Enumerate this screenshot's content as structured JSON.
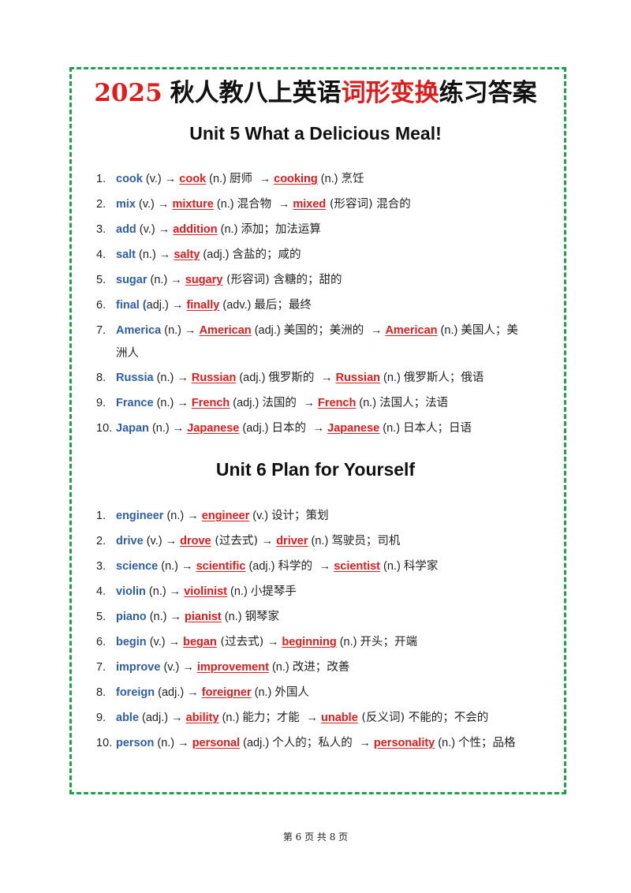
{
  "title": {
    "year": "2025",
    "part1": "秋人教八上英语",
    "highlight": "词形变换",
    "part2": "练习答案"
  },
  "units": [
    {
      "heading": "Unit 5 What a Delicious Meal!",
      "items": [
        {
          "num": "1.",
          "segments": [
            {
              "t": "kw",
              "v": "cook"
            },
            {
              "t": "txt",
              "v": " (v.) → "
            },
            {
              "t": "ans",
              "v": "cook"
            },
            {
              "t": "txt",
              "v": " (n.) "
            },
            {
              "t": "zh",
              "v": "厨师 "
            },
            {
              "t": "txt",
              "v": " → "
            },
            {
              "t": "ans",
              "v": "cooking"
            },
            {
              "t": "txt",
              "v": " (n.) "
            },
            {
              "t": "zh",
              "v": "烹饪"
            }
          ]
        },
        {
          "num": "2.",
          "segments": [
            {
              "t": "kw",
              "v": "mix"
            },
            {
              "t": "txt",
              "v": " (v.) → "
            },
            {
              "t": "ans",
              "v": "mixture"
            },
            {
              "t": "txt",
              "v": " (n.) "
            },
            {
              "t": "zh",
              "v": "混合物 "
            },
            {
              "t": "txt",
              "v": " → "
            },
            {
              "t": "ans",
              "v": "mixed"
            },
            {
              "t": "zh",
              "v": " (形容词) 混合的"
            }
          ]
        },
        {
          "num": "3.",
          "segments": [
            {
              "t": "kw",
              "v": "add"
            },
            {
              "t": "txt",
              "v": " (v.) → "
            },
            {
              "t": "ans",
              "v": "addition"
            },
            {
              "t": "txt",
              "v": " (n.) "
            },
            {
              "t": "zh",
              "v": "添加；加法运算"
            }
          ]
        },
        {
          "num": "4.",
          "segments": [
            {
              "t": "kw",
              "v": "salt"
            },
            {
              "t": "txt",
              "v": " (n.) → "
            },
            {
              "t": "ans",
              "v": "salty"
            },
            {
              "t": "txt",
              "v": " (adj.) "
            },
            {
              "t": "zh",
              "v": "含盐的；咸的"
            }
          ]
        },
        {
          "num": "5.",
          "segments": [
            {
              "t": "kw",
              "v": "sugar"
            },
            {
              "t": "txt",
              "v": " (n.) → "
            },
            {
              "t": "ans",
              "v": "sugary"
            },
            {
              "t": "zh",
              "v": " (形容词) 含糖的；甜的"
            }
          ]
        },
        {
          "num": "6.",
          "segments": [
            {
              "t": "kw",
              "v": "final ("
            },
            {
              "t": "txt",
              "v": "adj.) → "
            },
            {
              "t": "ans",
              "v": "finally"
            },
            {
              "t": "txt",
              "v": " (adv.) "
            },
            {
              "t": "zh",
              "v": "最后；最终"
            }
          ]
        },
        {
          "num": "7.",
          "segments": [
            {
              "t": "kw",
              "v": "America"
            },
            {
              "t": "txt",
              "v": " (n.) → "
            },
            {
              "t": "ans",
              "v": "American"
            },
            {
              "t": "txt",
              "v": " (adj.) "
            },
            {
              "t": "zh",
              "v": "美国的；美洲的 "
            },
            {
              "t": "txt",
              "v": " → "
            },
            {
              "t": "ans",
              "v": "American"
            },
            {
              "t": "txt",
              "v": " (n.) "
            },
            {
              "t": "zh",
              "v": "美国人；美"
            }
          ],
          "wrap": "洲人"
        },
        {
          "num": "8.",
          "segments": [
            {
              "t": "kw",
              "v": "Russia"
            },
            {
              "t": "txt",
              "v": " (n.) → "
            },
            {
              "t": "ans",
              "v": "Russian"
            },
            {
              "t": "txt",
              "v": " (adj.) "
            },
            {
              "t": "zh",
              "v": "俄罗斯的 "
            },
            {
              "t": "txt",
              "v": " → "
            },
            {
              "t": "ans",
              "v": "Russian"
            },
            {
              "t": "txt",
              "v": " (n.) "
            },
            {
              "t": "zh",
              "v": "俄罗斯人；俄语"
            }
          ]
        },
        {
          "num": "9.",
          "segments": [
            {
              "t": "kw",
              "v": "France"
            },
            {
              "t": "txt",
              "v": " (n.) → "
            },
            {
              "t": "ans",
              "v": "French"
            },
            {
              "t": "txt",
              "v": " (adj.) "
            },
            {
              "t": "zh",
              "v": "法国的 "
            },
            {
              "t": "txt",
              "v": " → "
            },
            {
              "t": "ans",
              "v": "French"
            },
            {
              "t": "txt",
              "v": " (n.) "
            },
            {
              "t": "zh",
              "v": "法国人；法语"
            }
          ]
        },
        {
          "num": "10.",
          "segments": [
            {
              "t": "kw",
              "v": "Japan"
            },
            {
              "t": "txt",
              "v": " (n.) → "
            },
            {
              "t": "ans",
              "v": "Japanese"
            },
            {
              "t": "txt",
              "v": " (adj.) "
            },
            {
              "t": "zh",
              "v": "日本的 "
            },
            {
              "t": "txt",
              "v": " → "
            },
            {
              "t": "ans",
              "v": "Japanese"
            },
            {
              "t": "txt",
              "v": " (n.) "
            },
            {
              "t": "zh",
              "v": "日本人；日语"
            }
          ]
        }
      ]
    },
    {
      "heading": "Unit 6 Plan for Yourself",
      "items": [
        {
          "num": "1.",
          "segments": [
            {
              "t": "kw",
              "v": "engineer"
            },
            {
              "t": "txt",
              "v": " (n.) → "
            },
            {
              "t": "ans",
              "v": "engineer"
            },
            {
              "t": "txt",
              "v": " (v.) "
            },
            {
              "t": "zh",
              "v": "设计；策划"
            }
          ]
        },
        {
          "num": "2.",
          "segments": [
            {
              "t": "kw",
              "v": "drive"
            },
            {
              "t": "txt",
              "v": " (v.) → "
            },
            {
              "t": "ans",
              "v": "drove"
            },
            {
              "t": "zh",
              "v": " (过去式) "
            },
            {
              "t": "txt",
              "v": "→ "
            },
            {
              "t": "ans",
              "v": "driver"
            },
            {
              "t": "txt",
              "v": " (n.) "
            },
            {
              "t": "zh",
              "v": "驾驶员；司机"
            }
          ]
        },
        {
          "num": "3.",
          "segments": [
            {
              "t": "kw",
              "v": "science"
            },
            {
              "t": "txt",
              "v": " (n.) → "
            },
            {
              "t": "ans",
              "v": "scientific"
            },
            {
              "t": "txt",
              "v": " (adj.) "
            },
            {
              "t": "zh",
              "v": "科学的 "
            },
            {
              "t": "txt",
              "v": " → "
            },
            {
              "t": "ans",
              "v": "scientist"
            },
            {
              "t": "txt",
              "v": " (n.) "
            },
            {
              "t": "zh",
              "v": "科学家"
            }
          ]
        },
        {
          "num": "4.",
          "segments": [
            {
              "t": "kw",
              "v": "violin"
            },
            {
              "t": "txt",
              "v": " (n.) → "
            },
            {
              "t": "ans",
              "v": "violinist"
            },
            {
              "t": "txt",
              "v": " (n.) "
            },
            {
              "t": "zh",
              "v": "小提琴手"
            }
          ]
        },
        {
          "num": "5.",
          "segments": [
            {
              "t": "kw",
              "v": "piano"
            },
            {
              "t": "txt",
              "v": " (n.) → "
            },
            {
              "t": "ans",
              "v": "pianist"
            },
            {
              "t": "txt",
              "v": " (n.) "
            },
            {
              "t": "zh",
              "v": "钢琴家"
            }
          ]
        },
        {
          "num": "6.",
          "segments": [
            {
              "t": "kw",
              "v": "begin"
            },
            {
              "t": "txt",
              "v": " (v.) → "
            },
            {
              "t": "ans",
              "v": "began"
            },
            {
              "t": "zh",
              "v": " (过去式) "
            },
            {
              "t": "txt",
              "v": "→ "
            },
            {
              "t": "ans",
              "v": "beginning"
            },
            {
              "t": "txt",
              "v": " (n.) "
            },
            {
              "t": "zh",
              "v": "开头；开端"
            }
          ]
        },
        {
          "num": "7.",
          "segments": [
            {
              "t": "kw",
              "v": "improve"
            },
            {
              "t": "txt",
              "v": " (v.) → "
            },
            {
              "t": "ans",
              "v": "improvement"
            },
            {
              "t": "txt",
              "v": " (n.) "
            },
            {
              "t": "zh",
              "v": "改进；改善"
            }
          ]
        },
        {
          "num": "8.",
          "segments": [
            {
              "t": "kw",
              "v": "foreign"
            },
            {
              "t": "txt",
              "v": " (adj.) → "
            },
            {
              "t": "ans",
              "v": "foreigner"
            },
            {
              "t": "txt",
              "v": " (n.) "
            },
            {
              "t": "zh",
              "v": "外国人"
            }
          ]
        },
        {
          "num": "9.",
          "segments": [
            {
              "t": "kw",
              "v": "able"
            },
            {
              "t": "txt",
              "v": " (adj.) → "
            },
            {
              "t": "ans",
              "v": "ability"
            },
            {
              "t": "txt",
              "v": " (n.) "
            },
            {
              "t": "zh",
              "v": "能力；才能 "
            },
            {
              "t": "txt",
              "v": " → "
            },
            {
              "t": "ans",
              "v": "unable"
            },
            {
              "t": "zh",
              "v": " (反义词) 不能的；不会的"
            }
          ]
        },
        {
          "num": "10.",
          "segments": [
            {
              "t": "kw",
              "v": "person"
            },
            {
              "t": "txt",
              "v": " (n.) → "
            },
            {
              "t": "ans",
              "v": "personal"
            },
            {
              "t": "txt",
              "v": " (adj.) "
            },
            {
              "t": "zh",
              "v": "个人的；私人的 "
            },
            {
              "t": "txt",
              "v": " → "
            },
            {
              "t": "ans",
              "v": "personality"
            },
            {
              "t": "txt",
              "v": " (n.) "
            },
            {
              "t": "zh",
              "v": "个性；品格"
            }
          ]
        }
      ]
    }
  ],
  "footer": "第 6 页 共 8 页",
  "colors": {
    "frame": "#1ea34a",
    "answer": "#e01b1b",
    "keyword": "#2f5ea8"
  }
}
